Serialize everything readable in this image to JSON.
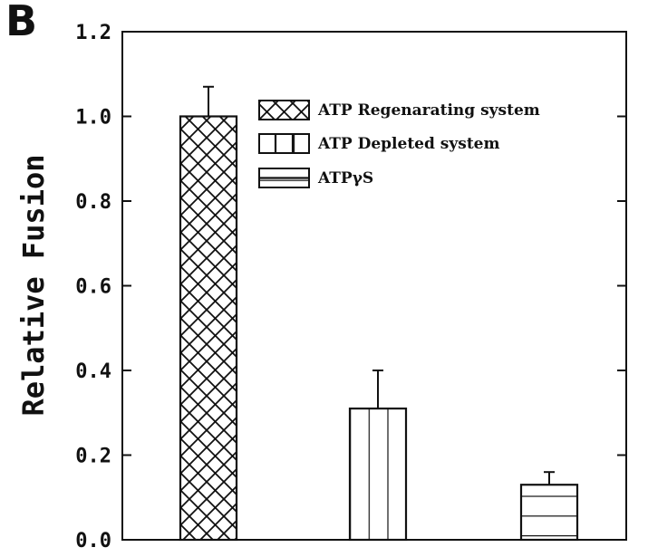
{
  "panel_label": "B",
  "chart_data": {
    "type": "bar",
    "title": "",
    "xlabel": "",
    "ylabel": "Relative Fusion",
    "ylim": [
      0,
      1.2
    ],
    "yticks": [
      "0.0",
      "0.2",
      "0.4",
      "0.6",
      "0.8",
      "1.0",
      "1.2"
    ],
    "categories": [
      "ATP Regenarating system",
      "ATP Depleted system",
      "ATPγS"
    ],
    "values": [
      1.0,
      0.31,
      0.13
    ],
    "errors": [
      0.07,
      0.09,
      0.03
    ],
    "patterns": [
      "crosshatch",
      "vertical",
      "horizontal"
    ],
    "legend": {
      "position": "top-right",
      "entries": [
        "ATP Regenarating system",
        "ATP Depleted system",
        "ATPγS"
      ]
    },
    "grid": false,
    "colors": {
      "ink": "#111111",
      "fill": "#ffffff"
    }
  }
}
